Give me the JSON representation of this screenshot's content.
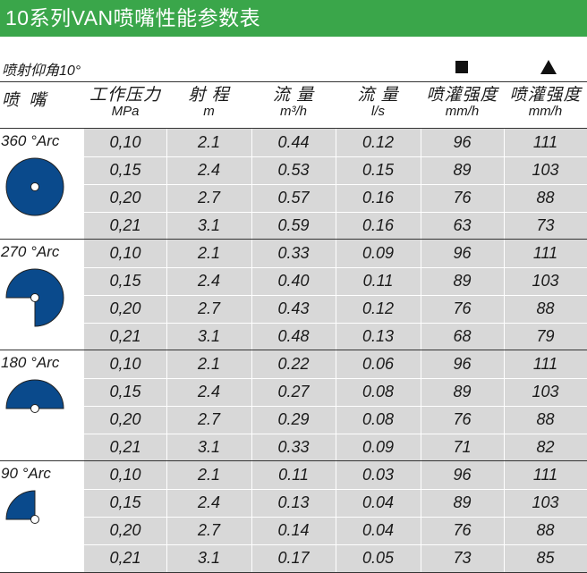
{
  "title": "10系列VAN喷嘴性能参数表",
  "subtitle": "喷射仰角10°",
  "legend": {
    "square_icon": "square-icon",
    "triangle_icon": "triangle-icon"
  },
  "headers": {
    "nozzle": "喷 嘴",
    "pressure": {
      "label": "工作压力",
      "unit": "MPa"
    },
    "radius": {
      "label": "射 程",
      "unit": "m"
    },
    "flow_m3": {
      "label": "流 量",
      "unit": "m³/h"
    },
    "flow_ls": {
      "label": "流 量",
      "unit": "l/s"
    },
    "precip_square": {
      "label": "喷灌强度",
      "unit": "mm/h"
    },
    "precip_triangle": {
      "label": "喷灌强度",
      "unit": "mm/h"
    }
  },
  "groups": [
    {
      "label": "360 °Arc",
      "arc_degrees": 360,
      "rows": [
        [
          "0,10",
          "2.1",
          "0.44",
          "0.12",
          "96",
          "111"
        ],
        [
          "0,15",
          "2.4",
          "0.53",
          "0.15",
          "89",
          "103"
        ],
        [
          "0,20",
          "2.7",
          "0.57",
          "0.16",
          "76",
          "88"
        ],
        [
          "0,21",
          "3.1",
          "0.59",
          "0.16",
          "63",
          "73"
        ]
      ]
    },
    {
      "label": "270 °Arc",
      "arc_degrees": 270,
      "rows": [
        [
          "0,10",
          "2.1",
          "0.33",
          "0.09",
          "96",
          "111"
        ],
        [
          "0,15",
          "2.4",
          "0.40",
          "0.11",
          "89",
          "103"
        ],
        [
          "0,20",
          "2.7",
          "0.43",
          "0.12",
          "76",
          "88"
        ],
        [
          "0,21",
          "3.1",
          "0.48",
          "0.13",
          "68",
          "79"
        ]
      ]
    },
    {
      "label": "180 °Arc",
      "arc_degrees": 180,
      "rows": [
        [
          "0,10",
          "2.1",
          "0.22",
          "0.06",
          "96",
          "111"
        ],
        [
          "0,15",
          "2.4",
          "0.27",
          "0.08",
          "89",
          "103"
        ],
        [
          "0,20",
          "2.7",
          "0.29",
          "0.08",
          "76",
          "88"
        ],
        [
          "0,21",
          "3.1",
          "0.33",
          "0.09",
          "71",
          "82"
        ]
      ]
    },
    {
      "label": "90 °Arc",
      "arc_degrees": 90,
      "rows": [
        [
          "0,10",
          "2.1",
          "0.11",
          "0.03",
          "96",
          "111"
        ],
        [
          "0,15",
          "2.4",
          "0.13",
          "0.04",
          "89",
          "103"
        ],
        [
          "0,20",
          "2.7",
          "0.14",
          "0.04",
          "76",
          "88"
        ],
        [
          "0,21",
          "3.1",
          "0.17",
          "0.05",
          "73",
          "85"
        ]
      ]
    }
  ],
  "colors": {
    "title_bg": "#3aa64a",
    "sector_fill": "#0a4a8c",
    "table_bg": "#d8d8d8"
  }
}
